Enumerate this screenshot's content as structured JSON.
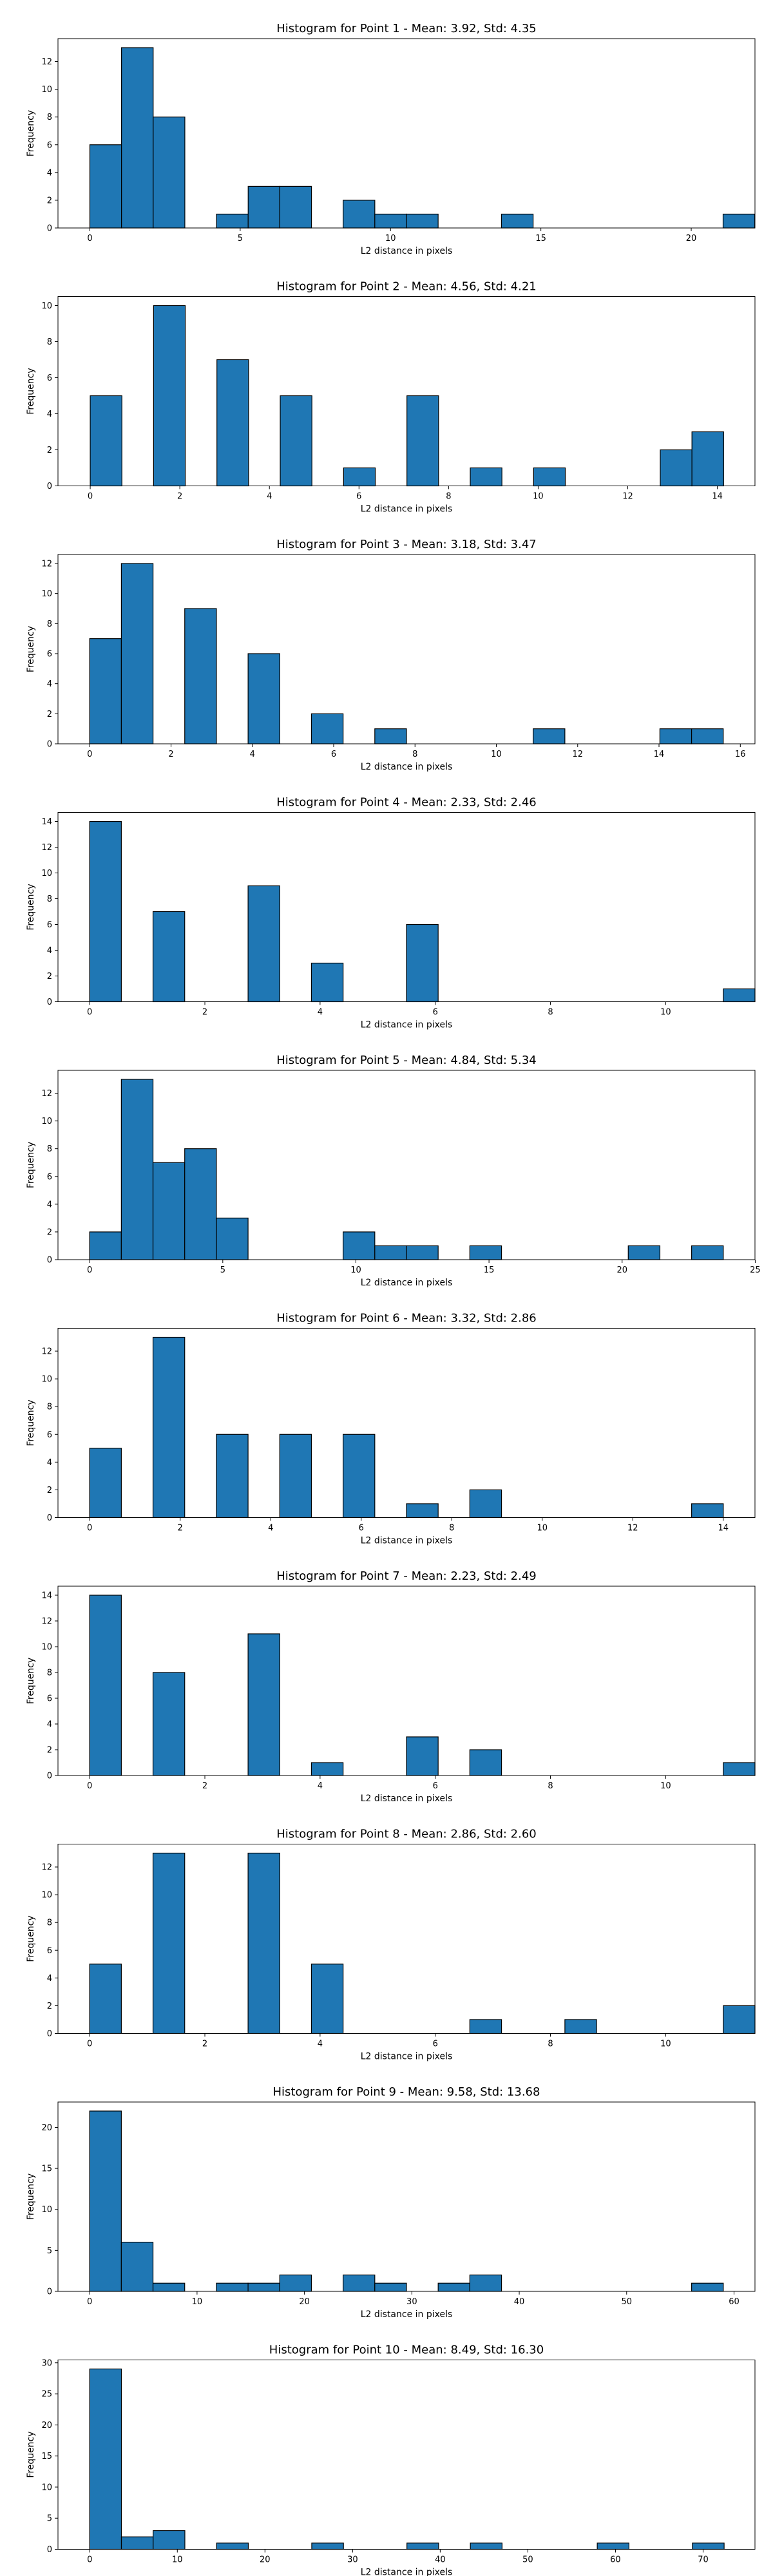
{
  "style": {
    "bar_fill": "#1f77b4",
    "bar_edge": "#000000",
    "background": "#ffffff"
  },
  "chart_data": [
    {
      "type": "bar",
      "title": "Histogram for Point 1 - Mean: 3.92, Std: 4.35",
      "xlabel": "L2 distance in pixels",
      "ylabel": "Frequency",
      "xlim": [
        -1.06,
        22.12
      ],
      "ylim": [
        0,
        13.65
      ],
      "xticks": [
        0,
        5,
        10,
        15,
        20
      ],
      "yticks": [
        0,
        2,
        4,
        6,
        8,
        10,
        12
      ],
      "bin_start": 0,
      "bin_width": 1.053,
      "counts": [
        6,
        13,
        8,
        0,
        1,
        3,
        3,
        0,
        2,
        1,
        1,
        0,
        0,
        1,
        0,
        0,
        0,
        0,
        0,
        0,
        1
      ]
    },
    {
      "type": "bar",
      "title": "Histogram for Point 2 - Mean: 4.56, Std: 4.21",
      "xlabel": "L2 distance in pixels",
      "ylabel": "Frequency",
      "xlim": [
        -0.72,
        14.84
      ],
      "ylim": [
        0,
        10.5
      ],
      "xticks": [
        0,
        2,
        4,
        6,
        8,
        10,
        12,
        14
      ],
      "yticks": [
        0,
        2,
        4,
        6,
        8,
        10
      ],
      "bin_start": 0,
      "bin_width": 0.707,
      "counts": [
        5,
        0,
        10,
        0,
        7,
        0,
        5,
        0,
        1,
        0,
        5,
        0,
        1,
        0,
        1,
        0,
        0,
        0,
        2,
        3
      ]
    },
    {
      "type": "bar",
      "title": "Histogram for Point 3 - Mean: 3.18, Std: 3.47",
      "xlabel": "L2 distance in pixels",
      "ylabel": "Frequency",
      "xlim": [
        -0.78,
        16.36
      ],
      "ylim": [
        0,
        12.6
      ],
      "xticks": [
        0,
        2,
        4,
        6,
        8,
        10,
        12,
        14,
        16
      ],
      "yticks": [
        0,
        2,
        4,
        6,
        8,
        10,
        12
      ],
      "bin_start": 0,
      "bin_width": 0.779,
      "counts": [
        7,
        12,
        0,
        9,
        0,
        6,
        0,
        2,
        0,
        1,
        0,
        0,
        0,
        0,
        1,
        0,
        0,
        0,
        1,
        1
      ]
    },
    {
      "type": "bar",
      "title": "Histogram for Point 4 - Mean: 2.33, Std: 2.46",
      "xlabel": "L2 distance in pixels",
      "ylabel": "Frequency",
      "xlim": [
        -0.55,
        11.55
      ],
      "ylim": [
        0,
        14.7
      ],
      "xticks": [
        0,
        2,
        4,
        6,
        8,
        10
      ],
      "yticks": [
        0,
        2,
        4,
        6,
        8,
        10,
        12,
        14
      ],
      "bin_start": 0,
      "bin_width": 0.55,
      "counts": [
        14,
        0,
        7,
        0,
        0,
        9,
        0,
        3,
        0,
        0,
        6,
        0,
        0,
        0,
        0,
        0,
        0,
        0,
        0,
        0,
        1
      ]
    },
    {
      "type": "bar",
      "title": "Histogram for Point 5 - Mean: 4.84, Std: 5.34",
      "xlabel": "L2 distance in pixels",
      "ylabel": "Frequency",
      "xlim": [
        -1.19,
        24.99
      ],
      "ylim": [
        0,
        13.65
      ],
      "xticks": [
        0,
        5,
        10,
        15,
        20,
        25
      ],
      "yticks": [
        0,
        2,
        4,
        6,
        8,
        10,
        12
      ],
      "bin_start": 0,
      "bin_width": 1.19,
      "counts": [
        2,
        13,
        7,
        8,
        3,
        0,
        0,
        0,
        2,
        1,
        1,
        0,
        1,
        0,
        0,
        0,
        0,
        1,
        0,
        1
      ]
    },
    {
      "type": "bar",
      "title": "Histogram for Point 6 - Mean: 3.32, Std: 2.86",
      "xlabel": "L2 distance in pixels",
      "ylabel": "Frequency",
      "xlim": [
        -0.7,
        14.7
      ],
      "ylim": [
        0,
        13.65
      ],
      "xticks": [
        0,
        2,
        4,
        6,
        8,
        10,
        12,
        14
      ],
      "yticks": [
        0,
        2,
        4,
        6,
        8,
        10,
        12
      ],
      "bin_start": 0,
      "bin_width": 0.7,
      "counts": [
        5,
        0,
        13,
        0,
        6,
        0,
        6,
        0,
        6,
        0,
        1,
        0,
        2,
        0,
        0,
        0,
        0,
        0,
        0,
        1
      ]
    },
    {
      "type": "bar",
      "title": "Histogram for Point 7 - Mean: 2.23, Std: 2.49",
      "xlabel": "L2 distance in pixels",
      "ylabel": "Frequency",
      "xlim": [
        -0.55,
        11.55
      ],
      "ylim": [
        0,
        14.7
      ],
      "xticks": [
        0,
        2,
        4,
        6,
        8,
        10
      ],
      "yticks": [
        0,
        2,
        4,
        6,
        8,
        10,
        12,
        14
      ],
      "bin_start": 0,
      "bin_width": 0.55,
      "counts": [
        14,
        0,
        8,
        0,
        0,
        11,
        0,
        1,
        0,
        0,
        3,
        0,
        2,
        0,
        0,
        0,
        0,
        0,
        0,
        0,
        1
      ]
    },
    {
      "type": "bar",
      "title": "Histogram for Point 8 - Mean: 2.86, Std: 2.60",
      "xlabel": "L2 distance in pixels",
      "ylabel": "Frequency",
      "xlim": [
        -0.55,
        11.55
      ],
      "ylim": [
        0,
        13.65
      ],
      "xticks": [
        0,
        2,
        4,
        6,
        8,
        10
      ],
      "yticks": [
        0,
        2,
        4,
        6,
        8,
        10,
        12
      ],
      "bin_start": 0,
      "bin_width": 0.55,
      "counts": [
        5,
        0,
        13,
        0,
        0,
        13,
        0,
        5,
        0,
        0,
        0,
        0,
        1,
        0,
        0,
        1,
        0,
        0,
        0,
        0,
        2
      ]
    },
    {
      "type": "bar",
      "title": "Histogram for Point 9 - Mean: 9.58, Std: 13.68",
      "xlabel": "L2 distance in pixels",
      "ylabel": "Frequency",
      "xlim": [
        -2.95,
        61.95
      ],
      "ylim": [
        0,
        23.1
      ],
      "xticks": [
        0,
        10,
        20,
        30,
        40,
        50,
        60
      ],
      "yticks": [
        0,
        5,
        10,
        15,
        20
      ],
      "bin_start": 0,
      "bin_width": 2.95,
      "counts": [
        22,
        6,
        1,
        0,
        1,
        1,
        2,
        0,
        2,
        1,
        0,
        1,
        2,
        0,
        0,
        0,
        0,
        0,
        0,
        1
      ]
    },
    {
      "type": "bar",
      "title": "Histogram for Point 10 - Mean: 8.49, Std: 16.30",
      "xlabel": "L2 distance in pixels",
      "ylabel": "Frequency",
      "xlim": [
        -3.62,
        75.92
      ],
      "ylim": [
        0,
        30.45
      ],
      "xticks": [
        0,
        10,
        20,
        30,
        40,
        50,
        60,
        70
      ],
      "yticks": [
        0,
        5,
        10,
        15,
        20,
        25,
        30
      ],
      "bin_start": 0,
      "bin_width": 3.62,
      "counts": [
        29,
        2,
        3,
        0,
        1,
        0,
        0,
        1,
        0,
        0,
        1,
        0,
        1,
        0,
        0,
        0,
        1,
        0,
        0,
        1
      ]
    }
  ]
}
